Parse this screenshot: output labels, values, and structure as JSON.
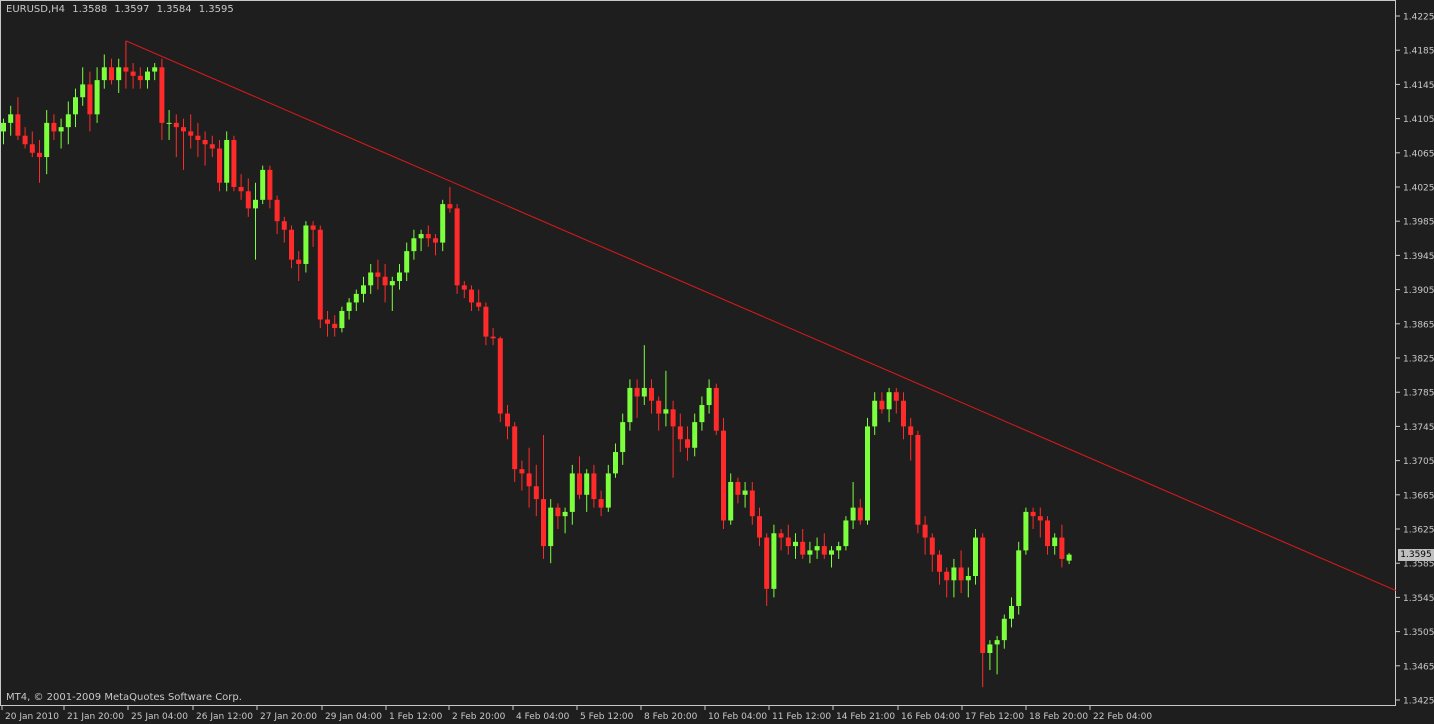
{
  "header": {
    "symbol": "EURUSD,H4",
    "ohlc": [
      "1.3588",
      "1.3597",
      "1.3584",
      "1.3595"
    ]
  },
  "footer": {
    "copyright": "MT4, © 2001-2009 MetaQuotes Software Corp."
  },
  "current_price": "1.3595",
  "colors": {
    "background": "#1e1e1e",
    "bull": "#7cff3c",
    "bear": "#ff2a2a",
    "trendline": "#e01818",
    "axis_text": "#c8c8c8"
  },
  "chart_data": {
    "type": "candlestick",
    "title": "EURUSD,H4",
    "y_ticks": [
      "1.4225",
      "1.4185",
      "1.4145",
      "1.4105",
      "1.4065",
      "1.4025",
      "1.3985",
      "1.3945",
      "1.3905",
      "1.3865",
      "1.3825",
      "1.3785",
      "1.3745",
      "1.3705",
      "1.3665",
      "1.3625",
      "1.3585",
      "1.3545",
      "1.3505",
      "1.3465",
      "1.3425"
    ],
    "x_ticks": [
      "20 Jan 2010",
      "21 Jan 20:00",
      "25 Jan 04:00",
      "26 Jan 12:00",
      "27 Jan 20:00",
      "29 Jan 04:00",
      "1 Feb 12:00",
      "2 Feb 20:00",
      "4 Feb 04:00",
      "5 Feb 12:00",
      "8 Feb 20:00",
      "10 Feb 04:00",
      "11 Feb 12:00",
      "14 Feb 21:00",
      "16 Feb 04:00",
      "17 Feb 12:00",
      "18 Feb 20:00",
      "22 Feb 04:00"
    ],
    "ylim": [
      1.3425,
      1.4225
    ],
    "trendline": {
      "from": {
        "time": "25 Jan 04:00",
        "price": 1.4196
      },
      "to": {
        "time": "right edge",
        "price": 1.3553
      }
    },
    "candles": [
      [
        1.409,
        1.4105,
        1.4075,
        1.41
      ],
      [
        1.41,
        1.412,
        1.4085,
        1.411
      ],
      [
        1.411,
        1.413,
        1.408,
        1.4085
      ],
      [
        1.4085,
        1.4095,
        1.407,
        1.4075
      ],
      [
        1.4075,
        1.409,
        1.406,
        1.4065
      ],
      [
        1.4065,
        1.408,
        1.403,
        1.406
      ],
      [
        1.406,
        1.4115,
        1.404,
        1.41
      ],
      [
        1.41,
        1.411,
        1.408,
        1.409
      ],
      [
        1.409,
        1.4105,
        1.407,
        1.4095
      ],
      [
        1.4095,
        1.4125,
        1.4075,
        1.411
      ],
      [
        1.411,
        1.414,
        1.4095,
        1.413
      ],
      [
        1.413,
        1.4165,
        1.412,
        1.4145
      ],
      [
        1.4145,
        1.416,
        1.409,
        1.411
      ],
      [
        1.411,
        1.4165,
        1.41,
        1.415
      ],
      [
        1.415,
        1.418,
        1.414,
        1.4165
      ],
      [
        1.4165,
        1.4175,
        1.4145,
        1.415
      ],
      [
        1.415,
        1.4175,
        1.4135,
        1.4165
      ],
      [
        1.4165,
        1.4196,
        1.414,
        1.416
      ],
      [
        1.416,
        1.417,
        1.414,
        1.4155
      ],
      [
        1.4155,
        1.4165,
        1.414,
        1.415
      ],
      [
        1.415,
        1.4165,
        1.414,
        1.416
      ],
      [
        1.416,
        1.417,
        1.415,
        1.4165
      ],
      [
        1.4165,
        1.4175,
        1.408,
        1.41
      ],
      [
        1.41,
        1.4115,
        1.408,
        1.41
      ],
      [
        1.41,
        1.411,
        1.406,
        1.4095
      ],
      [
        1.4095,
        1.4105,
        1.4045,
        1.409
      ],
      [
        1.409,
        1.411,
        1.407,
        1.4085
      ],
      [
        1.4085,
        1.41,
        1.406,
        1.408
      ],
      [
        1.408,
        1.409,
        1.405,
        1.4075
      ],
      [
        1.4075,
        1.4085,
        1.406,
        1.407
      ],
      [
        1.407,
        1.408,
        1.402,
        1.403
      ],
      [
        1.403,
        1.409,
        1.402,
        1.408
      ],
      [
        1.408,
        1.4085,
        1.402,
        1.4025
      ],
      [
        1.4025,
        1.404,
        1.401,
        1.402
      ],
      [
        1.402,
        1.4035,
        1.399,
        1.4
      ],
      [
        1.4,
        1.403,
        1.394,
        1.401
      ],
      [
        1.401,
        1.405,
        1.4005,
        1.4045
      ],
      [
        1.4045,
        1.405,
        1.4,
        1.401
      ],
      [
        1.401,
        1.4015,
        1.397,
        1.3985
      ],
      [
        1.3985,
        1.399,
        1.396,
        1.3975
      ],
      [
        1.3975,
        1.398,
        1.393,
        1.394
      ],
      [
        1.394,
        1.395,
        1.3915,
        1.3935
      ],
      [
        1.3935,
        1.3985,
        1.3925,
        1.398
      ],
      [
        1.398,
        1.3985,
        1.3955,
        1.3975
      ],
      [
        1.3975,
        1.398,
        1.386,
        1.387
      ],
      [
        1.387,
        1.388,
        1.385,
        1.3865
      ],
      [
        1.3865,
        1.3875,
        1.385,
        1.386
      ],
      [
        1.386,
        1.3885,
        1.3855,
        1.388
      ],
      [
        1.388,
        1.3895,
        1.387,
        1.389
      ],
      [
        1.389,
        1.3905,
        1.388,
        1.39
      ],
      [
        1.39,
        1.392,
        1.389,
        1.391
      ],
      [
        1.391,
        1.3935,
        1.39,
        1.3925
      ],
      [
        1.3925,
        1.394,
        1.3905,
        1.392
      ],
      [
        1.392,
        1.3935,
        1.389,
        1.391
      ],
      [
        1.391,
        1.392,
        1.388,
        1.3915
      ],
      [
        1.3915,
        1.3935,
        1.3905,
        1.3925
      ],
      [
        1.3925,
        1.396,
        1.3915,
        1.395
      ],
      [
        1.395,
        1.3975,
        1.394,
        1.3965
      ],
      [
        1.3965,
        1.3975,
        1.395,
        1.397
      ],
      [
        1.397,
        1.398,
        1.3955,
        1.3965
      ],
      [
        1.3965,
        1.397,
        1.3945,
        1.396
      ],
      [
        1.396,
        1.401,
        1.395,
        1.4005
      ],
      [
        1.4005,
        1.4025,
        1.3995,
        1.4
      ],
      [
        1.4,
        1.4005,
        1.39,
        1.391
      ],
      [
        1.391,
        1.3915,
        1.3895,
        1.3905
      ],
      [
        1.3905,
        1.391,
        1.388,
        1.389
      ],
      [
        1.389,
        1.3905,
        1.388,
        1.3885
      ],
      [
        1.3885,
        1.389,
        1.384,
        1.385
      ],
      [
        1.385,
        1.386,
        1.384,
        1.3848
      ],
      [
        1.3848,
        1.385,
        1.375,
        1.376
      ],
      [
        1.376,
        1.377,
        1.373,
        1.3745
      ],
      [
        1.3745,
        1.375,
        1.368,
        1.3695
      ],
      [
        1.3695,
        1.3705,
        1.367,
        1.369
      ],
      [
        1.369,
        1.372,
        1.365,
        1.3675
      ],
      [
        1.3675,
        1.37,
        1.364,
        1.366
      ],
      [
        1.366,
        1.3735,
        1.359,
        1.3605
      ],
      [
        1.3605,
        1.366,
        1.3585,
        1.365
      ],
      [
        1.365,
        1.3655,
        1.3625,
        1.364
      ],
      [
        1.364,
        1.365,
        1.362,
        1.3645
      ],
      [
        1.3645,
        1.37,
        1.363,
        1.369
      ],
      [
        1.369,
        1.371,
        1.366,
        1.3665
      ],
      [
        1.3665,
        1.3695,
        1.3645,
        1.369
      ],
      [
        1.369,
        1.37,
        1.365,
        1.366
      ],
      [
        1.366,
        1.367,
        1.364,
        1.365
      ],
      [
        1.365,
        1.37,
        1.3645,
        1.369
      ],
      [
        1.369,
        1.3725,
        1.3685,
        1.3715
      ],
      [
        1.3715,
        1.376,
        1.37,
        1.375
      ],
      [
        1.375,
        1.38,
        1.374,
        1.379
      ],
      [
        1.379,
        1.38,
        1.3755,
        1.378
      ],
      [
        1.378,
        1.384,
        1.377,
        1.379
      ],
      [
        1.379,
        1.38,
        1.376,
        1.3775
      ],
      [
        1.3775,
        1.378,
        1.374,
        1.376
      ],
      [
        1.376,
        1.381,
        1.3745,
        1.3765
      ],
      [
        1.3765,
        1.3775,
        1.3685,
        1.3745
      ],
      [
        1.3745,
        1.376,
        1.3715,
        1.373
      ],
      [
        1.373,
        1.3745,
        1.3705,
        1.372
      ],
      [
        1.372,
        1.376,
        1.371,
        1.375
      ],
      [
        1.375,
        1.378,
        1.374,
        1.377
      ],
      [
        1.377,
        1.38,
        1.376,
        1.379
      ],
      [
        1.379,
        1.3795,
        1.3735,
        1.374
      ],
      [
        1.374,
        1.3755,
        1.3625,
        1.3635
      ],
      [
        1.3635,
        1.369,
        1.363,
        1.368
      ],
      [
        1.368,
        1.3685,
        1.3655,
        1.3665
      ],
      [
        1.3665,
        1.368,
        1.365,
        1.367
      ],
      [
        1.367,
        1.368,
        1.363,
        1.364
      ],
      [
        1.364,
        1.365,
        1.3605,
        1.3615
      ],
      [
        1.3615,
        1.362,
        1.3535,
        1.3555
      ],
      [
        1.3555,
        1.363,
        1.3545,
        1.362
      ],
      [
        1.362,
        1.3625,
        1.36,
        1.3615
      ],
      [
        1.3615,
        1.363,
        1.3595,
        1.3605
      ],
      [
        1.3605,
        1.362,
        1.359,
        1.361
      ],
      [
        1.361,
        1.3625,
        1.359,
        1.3595
      ],
      [
        1.3595,
        1.361,
        1.3585,
        1.36
      ],
      [
        1.36,
        1.3615,
        1.359,
        1.3605
      ],
      [
        1.3605,
        1.362,
        1.359,
        1.3595
      ],
      [
        1.3595,
        1.3605,
        1.358,
        1.36
      ],
      [
        1.36,
        1.361,
        1.359,
        1.3605
      ],
      [
        1.3605,
        1.364,
        1.36,
        1.3635
      ],
      [
        1.3635,
        1.368,
        1.3625,
        1.365
      ],
      [
        1.365,
        1.366,
        1.363,
        1.3635
      ],
      [
        1.3635,
        1.3755,
        1.363,
        1.3745
      ],
      [
        1.3745,
        1.3785,
        1.3735,
        1.3775
      ],
      [
        1.3775,
        1.3785,
        1.376,
        1.3765
      ],
      [
        1.3765,
        1.379,
        1.375,
        1.3785
      ],
      [
        1.3785,
        1.379,
        1.376,
        1.3775
      ],
      [
        1.3775,
        1.3785,
        1.373,
        1.3745
      ],
      [
        1.3745,
        1.3755,
        1.3705,
        1.3735
      ],
      [
        1.3735,
        1.374,
        1.362,
        1.363
      ],
      [
        1.363,
        1.364,
        1.3595,
        1.3615
      ],
      [
        1.3615,
        1.362,
        1.3575,
        1.3595
      ],
      [
        1.3595,
        1.36,
        1.356,
        1.3575
      ],
      [
        1.3575,
        1.358,
        1.3545,
        1.3565
      ],
      [
        1.3565,
        1.359,
        1.3545,
        1.358
      ],
      [
        1.358,
        1.36,
        1.355,
        1.3565
      ],
      [
        1.3565,
        1.358,
        1.3545,
        1.357
      ],
      [
        1.357,
        1.3625,
        1.356,
        1.3615
      ],
      [
        1.3615,
        1.362,
        1.344,
        1.348
      ],
      [
        1.348,
        1.3495,
        1.346,
        1.349
      ],
      [
        1.349,
        1.35,
        1.3455,
        1.3495
      ],
      [
        1.3495,
        1.3525,
        1.3485,
        1.352
      ],
      [
        1.352,
        1.3545,
        1.351,
        1.3535
      ],
      [
        1.3535,
        1.361,
        1.3525,
        1.36
      ],
      [
        1.36,
        1.365,
        1.3595,
        1.3645
      ],
      [
        1.3645,
        1.365,
        1.3625,
        1.364
      ],
      [
        1.364,
        1.365,
        1.3615,
        1.3635
      ],
      [
        1.3635,
        1.364,
        1.3595,
        1.3605
      ],
      [
        1.3605,
        1.362,
        1.3595,
        1.3615
      ],
      [
        1.3615,
        1.363,
        1.358,
        1.359
      ],
      [
        1.3588,
        1.3597,
        1.3584,
        1.3595
      ]
    ]
  }
}
